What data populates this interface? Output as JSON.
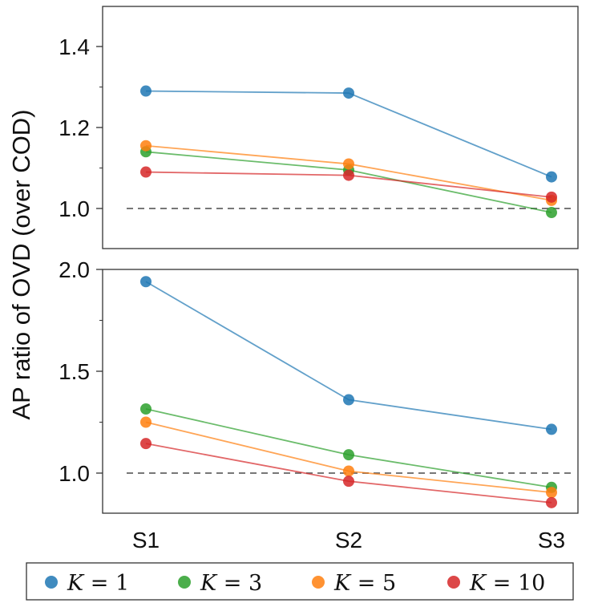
{
  "chart_data": {
    "type": "line",
    "ylabel": "AP ratio of OVD (over COD)",
    "categories": [
      "S1",
      "S2",
      "S3"
    ],
    "reference_line": 1.0,
    "legend": {
      "placement": "bottom",
      "label_prefix": "K",
      "label_operator": "="
    },
    "series": [
      {
        "name": "K = 1",
        "k": "1",
        "color": "#1f77b4"
      },
      {
        "name": "K = 3",
        "k": "3",
        "color": "#2ca02c"
      },
      {
        "name": "K = 5",
        "k": "5",
        "color": "#ff7f0e"
      },
      {
        "name": "K = 10",
        "k": "10",
        "color": "#d62728"
      }
    ],
    "panels": [
      {
        "ylim": [
          0.9,
          1.5
        ],
        "yticks": [
          1.0,
          1.2,
          1.4
        ],
        "ytick_labels": [
          "1.0",
          "1.2",
          "1.4"
        ],
        "minor_yticks": [
          1.1,
          1.3
        ],
        "values": [
          [
            1.29,
            1.285,
            1.078
          ],
          [
            1.14,
            1.095,
            0.99
          ],
          [
            1.155,
            1.11,
            1.02
          ],
          [
            1.09,
            1.082,
            1.028
          ]
        ]
      },
      {
        "ylim": [
          0.81,
          2.0
        ],
        "yticks": [
          1.0,
          1.5,
          2.0
        ],
        "ytick_labels": [
          "1.0",
          "1.5",
          "2.0"
        ],
        "minor_yticks": [
          1.25,
          1.75
        ],
        "values": [
          [
            1.94,
            1.36,
            1.215
          ],
          [
            1.315,
            1.09,
            0.93
          ],
          [
            1.25,
            1.01,
            0.905
          ],
          [
            1.145,
            0.96,
            0.855
          ]
        ]
      }
    ]
  }
}
